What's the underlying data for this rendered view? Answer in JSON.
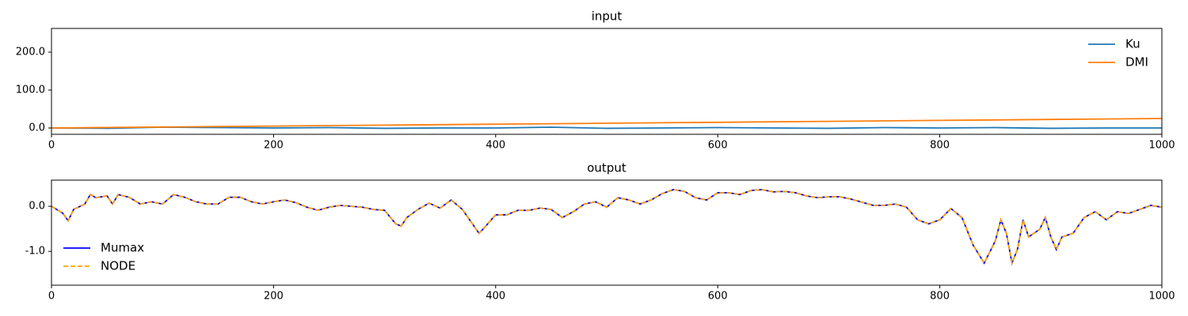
{
  "chart_data": [
    {
      "type": "line",
      "title": "input",
      "x": [
        0,
        50,
        100,
        150,
        200,
        250,
        300,
        350,
        400,
        450,
        500,
        550,
        600,
        650,
        700,
        750,
        800,
        850,
        900,
        950,
        1000
      ],
      "series": [
        {
          "name": "Ku",
          "color": "#1f77b4",
          "linestyle": "solid",
          "values": [
            0,
            -1,
            2,
            1,
            0,
            1,
            -1,
            0,
            0,
            2,
            -1,
            0,
            1,
            0,
            -1,
            1,
            0,
            1,
            -1,
            0,
            0
          ]
        },
        {
          "name": "DMI",
          "color": "#ff7f0e",
          "linestyle": "solid",
          "values": [
            0,
            1.25,
            2.5,
            3.75,
            5,
            6.25,
            7.5,
            8.75,
            10,
            11.25,
            12.5,
            13.75,
            15,
            16.25,
            17.5,
            18.75,
            20,
            21.25,
            22.5,
            23.75,
            25
          ]
        }
      ],
      "xlim": [
        0,
        1000
      ],
      "xticks": [
        0,
        200,
        400,
        600,
        800,
        1000
      ],
      "ylim": [
        -16.7,
        262.5
      ],
      "yticks": [
        {
          "value": 0,
          "label": "0.0"
        },
        {
          "value": 100,
          "label": "100.0"
        },
        {
          "value": 200,
          "label": "200.0"
        }
      ],
      "grid": false,
      "legend": "upper right"
    },
    {
      "type": "line",
      "title": "output",
      "x": [
        0,
        10,
        15,
        20,
        30,
        35,
        40,
        50,
        55,
        60,
        70,
        80,
        90,
        100,
        110,
        120,
        130,
        140,
        150,
        160,
        170,
        180,
        190,
        200,
        210,
        220,
        230,
        240,
        250,
        260,
        270,
        280,
        290,
        300,
        310,
        315,
        320,
        330,
        340,
        350,
        360,
        370,
        380,
        385,
        390,
        400,
        410,
        420,
        430,
        440,
        450,
        460,
        470,
        480,
        490,
        500,
        510,
        520,
        530,
        540,
        550,
        560,
        570,
        580,
        590,
        600,
        610,
        620,
        630,
        640,
        650,
        660,
        670,
        680,
        690,
        700,
        710,
        720,
        730,
        740,
        750,
        760,
        770,
        780,
        790,
        800,
        810,
        820,
        830,
        840,
        850,
        855,
        860,
        865,
        870,
        875,
        880,
        890,
        895,
        900,
        905,
        910,
        920,
        930,
        940,
        950,
        960,
        970,
        980,
        990,
        1000
      ],
      "series": [
        {
          "name": "Mumax",
          "color": "#0000ff",
          "linestyle": "solid",
          "values": [
            0,
            -0.15,
            -0.32,
            -0.07,
            0.05,
            0.26,
            0.19,
            0.23,
            0.05,
            0.26,
            0.2,
            0.05,
            0.1,
            0.05,
            0.26,
            0.2,
            0.1,
            0.05,
            0.05,
            0.2,
            0.2,
            0.1,
            0.05,
            0.1,
            0.14,
            0.08,
            -0.02,
            -0.09,
            -0.02,
            0.02,
            0,
            -0.02,
            -0.07,
            -0.09,
            -0.39,
            -0.44,
            -0.25,
            -0.07,
            0.07,
            -0.04,
            0.14,
            -0.07,
            -0.42,
            -0.6,
            -0.47,
            -0.19,
            -0.19,
            -0.09,
            -0.09,
            -0.04,
            -0.07,
            -0.25,
            -0.12,
            0.05,
            0.1,
            -0.02,
            0.19,
            0.14,
            0.05,
            0.14,
            0.28,
            0.37,
            0.33,
            0.19,
            0.14,
            0.3,
            0.3,
            0.26,
            0.35,
            0.37,
            0.32,
            0.33,
            0.3,
            0.23,
            0.19,
            0.21,
            0.21,
            0.16,
            0.09,
            0.02,
            0.02,
            0.05,
            -0.02,
            -0.3,
            -0.39,
            -0.3,
            -0.05,
            -0.25,
            -0.86,
            -1.26,
            -0.77,
            -0.3,
            -0.6,
            -1.26,
            -0.95,
            -0.3,
            -0.68,
            -0.51,
            -0.25,
            -0.68,
            -0.96,
            -0.68,
            -0.6,
            -0.25,
            -0.12,
            -0.3,
            -0.12,
            -0.16,
            -0.07,
            0.02,
            -0.02
          ]
        },
        {
          "name": "NODE",
          "color": "#ffa500",
          "linestyle": "dashed",
          "values": [
            0,
            -0.15,
            -0.32,
            -0.07,
            0.05,
            0.26,
            0.19,
            0.23,
            0.05,
            0.26,
            0.2,
            0.05,
            0.1,
            0.05,
            0.26,
            0.2,
            0.1,
            0.05,
            0.05,
            0.2,
            0.2,
            0.1,
            0.05,
            0.1,
            0.14,
            0.08,
            -0.02,
            -0.09,
            -0.02,
            0.02,
            0,
            -0.02,
            -0.07,
            -0.09,
            -0.39,
            -0.44,
            -0.25,
            -0.07,
            0.07,
            -0.04,
            0.14,
            -0.07,
            -0.42,
            -0.6,
            -0.47,
            -0.19,
            -0.19,
            -0.09,
            -0.09,
            -0.04,
            -0.07,
            -0.25,
            -0.12,
            0.05,
            0.1,
            -0.02,
            0.19,
            0.14,
            0.05,
            0.14,
            0.28,
            0.37,
            0.33,
            0.19,
            0.14,
            0.3,
            0.3,
            0.26,
            0.35,
            0.37,
            0.32,
            0.33,
            0.3,
            0.23,
            0.19,
            0.21,
            0.21,
            0.16,
            0.09,
            0.02,
            0.02,
            0.05,
            -0.02,
            -0.3,
            -0.39,
            -0.3,
            -0.05,
            -0.25,
            -0.86,
            -1.26,
            -0.77,
            -0.3,
            -0.6,
            -1.26,
            -0.95,
            -0.3,
            -0.68,
            -0.51,
            -0.25,
            -0.68,
            -0.96,
            -0.68,
            -0.6,
            -0.25,
            -0.12,
            -0.3,
            -0.12,
            -0.16,
            -0.07,
            0.02,
            -0.02
          ]
        }
      ],
      "xlim": [
        0,
        1000
      ],
      "xticks": [
        0,
        200,
        400,
        600,
        800,
        1000
      ],
      "ylim": [
        -1.75,
        0.58
      ],
      "yticks": [
        {
          "value": -1,
          "label": "-1.0"
        },
        {
          "value": 0,
          "label": "0.0"
        }
      ],
      "grid": false,
      "legend": "lower left"
    }
  ]
}
